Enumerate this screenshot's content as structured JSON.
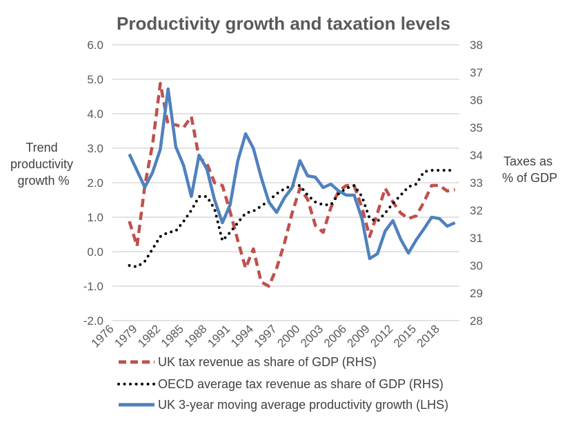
{
  "chart_data": {
    "type": "line",
    "title": "Productivity growth and taxation levels",
    "ylabel_left": [
      "Trend",
      "productivity",
      "growth %"
    ],
    "ylabel_right": [
      "Taxes as",
      "% of GDP"
    ],
    "y_left_lim": [
      -2.0,
      6.0
    ],
    "y_left_ticks": [
      "6.0",
      "5.0",
      "4.0",
      "3.0",
      "2.0",
      "1.0",
      "0.0",
      "-1.0",
      "-2.0"
    ],
    "y_right_lim": [
      28,
      38
    ],
    "y_right_ticks": [
      "38",
      "37",
      "36",
      "35",
      "34",
      "33",
      "32",
      "31",
      "30",
      "29",
      "28"
    ],
    "x_tick_labels": [
      "1976",
      "1979",
      "1982",
      "1985",
      "1988",
      "1991",
      "1994",
      "1997",
      "2000",
      "2003",
      "2006",
      "2009",
      "2012",
      "2015",
      "2018"
    ],
    "grid": "horizontal",
    "legend_position": "bottom",
    "x": [
      1978,
      1979,
      1980,
      1981,
      1982,
      1983,
      1984,
      1985,
      1986,
      1987,
      1988,
      1989,
      1990,
      1991,
      1992,
      1993,
      1994,
      1995,
      1996,
      1997,
      1998,
      1999,
      2000,
      2001,
      2002,
      2003,
      2004,
      2005,
      2006,
      2007,
      2008,
      2009,
      2010,
      2011,
      2012,
      2013,
      2014,
      2015,
      2016,
      2017,
      2018,
      2019,
      2020
    ],
    "series": [
      {
        "name": "UK tax revenue as share of GDP (RHS)",
        "axis": "right",
        "color": "#C0504D",
        "style": "dashed",
        "values": [
          31.6,
          30.7,
          32.9,
          34.4,
          36.6,
          35.1,
          35.1,
          35.0,
          35.4,
          33.9,
          33.7,
          33.0,
          32.9,
          31.95,
          30.9,
          29.9,
          30.6,
          29.4,
          29.25,
          29.9,
          30.8,
          31.9,
          32.8,
          32.4,
          31.45,
          31.2,
          32.1,
          32.7,
          32.9,
          32.9,
          32.1,
          31.05,
          31.9,
          32.8,
          32.3,
          31.9,
          31.7,
          31.8,
          32.3,
          32.9,
          32.9,
          32.7,
          32.75
        ]
      },
      {
        "name": "OECD average tax revenue as share of GDP (RHS)",
        "axis": "right",
        "color": "#000000",
        "style": "dotted",
        "values": [
          30.0,
          29.95,
          30.15,
          30.6,
          31.05,
          31.2,
          31.25,
          31.6,
          32.0,
          32.5,
          32.5,
          32.05,
          30.9,
          31.2,
          31.55,
          31.9,
          31.97,
          32.15,
          32.35,
          32.6,
          32.78,
          32.9,
          32.9,
          32.55,
          32.3,
          32.2,
          32.2,
          32.6,
          32.8,
          32.9,
          32.5,
          31.7,
          31.6,
          31.9,
          32.25,
          32.55,
          32.85,
          32.95,
          33.4,
          33.45,
          33.45,
          33.45,
          33.45
        ]
      },
      {
        "name": "UK 3-year moving average productivity growth (LHS)",
        "axis": "left",
        "color": "#4F81BD",
        "style": "solid",
        "values": [
          2.83,
          2.35,
          1.87,
          2.3,
          2.97,
          4.72,
          3.04,
          2.5,
          1.6,
          2.8,
          2.4,
          1.5,
          0.84,
          1.36,
          2.64,
          3.42,
          3.0,
          2.16,
          1.44,
          1.14,
          1.56,
          1.86,
          2.64,
          2.2,
          2.16,
          1.86,
          1.96,
          1.76,
          1.64,
          1.64,
          0.96,
          -0.2,
          -0.06,
          0.6,
          0.9,
          0.36,
          -0.04,
          0.34,
          0.66,
          1.0,
          0.96,
          0.74,
          0.84
        ]
      }
    ]
  }
}
